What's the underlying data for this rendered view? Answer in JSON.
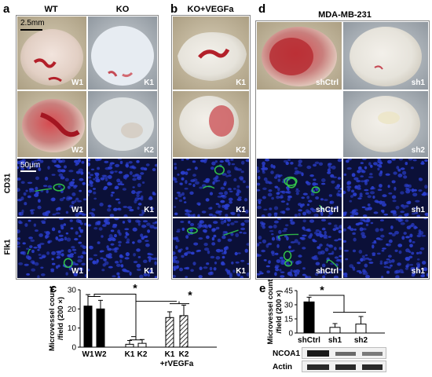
{
  "panels": {
    "a": {
      "letter": "a",
      "col_headers": [
        "WT",
        "KO"
      ],
      "scale_bar_label": "2.5mm",
      "micro_scale_label": "50μm",
      "row_labels": [
        "CD31",
        "Flk1"
      ],
      "gross_labels": [
        "W1",
        "K1",
        "W2",
        "K2"
      ],
      "cd31_labels": [
        "W1",
        "K1"
      ],
      "flk1_labels": [
        "W1",
        "K1"
      ]
    },
    "b": {
      "letter": "b",
      "header": "KO+VEGFa",
      "gross_labels": [
        "K1",
        "K2"
      ],
      "cd31_label": "K1",
      "flk1_label": "K1"
    },
    "d": {
      "letter": "d",
      "header": "MDA-MB-231",
      "gross_labels": [
        "shCtrl",
        "sh1",
        "sh2"
      ],
      "cd31_labels": [
        "shCtrl",
        "sh1"
      ],
      "flk1_labels": [
        "shCtrl",
        "sh1"
      ]
    },
    "c": {
      "letter": "c",
      "significance": [
        "*",
        "*"
      ],
      "sublabel": "+rVEGFa"
    },
    "e": {
      "letter": "e",
      "significance": "*",
      "blot_labels": [
        "NCOA1",
        "Actin"
      ]
    }
  },
  "colors": {
    "bar_solid": "#000000",
    "bar_open": "#ffffff",
    "fluor_nuclei": "#2b3fd0",
    "fluor_vessel": "#35d04a",
    "tumor_red": "#b3202a"
  },
  "chart_data": [
    {
      "type": "bar",
      "panel": "c",
      "ylabel": [
        "Microvessel count",
        "/field (200 ×)"
      ],
      "ylim": [
        0,
        30
      ],
      "yticks": [
        0,
        10,
        20,
        30
      ],
      "categories": [
        "W1",
        "W2",
        "K1",
        "K2",
        "K1",
        "K2"
      ],
      "values": [
        21.5,
        20,
        1.5,
        2,
        15.5,
        16.5
      ],
      "errors": [
        6,
        4.5,
        2,
        2,
        3,
        5.5
      ],
      "fills": [
        "solid",
        "solid",
        "open",
        "open",
        "hatched",
        "hatched"
      ],
      "groups": [
        "WT",
        "WT",
        "KO",
        "KO",
        "KO+rVEGFa",
        "KO+rVEGFa"
      ]
    },
    {
      "type": "bar",
      "panel": "e",
      "ylabel": [
        "Microvessel count",
        "/field (200 ×)"
      ],
      "ylim": [
        0,
        45
      ],
      "yticks": [
        0,
        15,
        30,
        45
      ],
      "categories": [
        "shCtrl",
        "sh1",
        "sh2"
      ],
      "values": [
        33,
        6,
        9.5
      ],
      "errors": [
        5,
        4,
        8
      ],
      "fills": [
        "solid",
        "open",
        "open"
      ]
    }
  ]
}
